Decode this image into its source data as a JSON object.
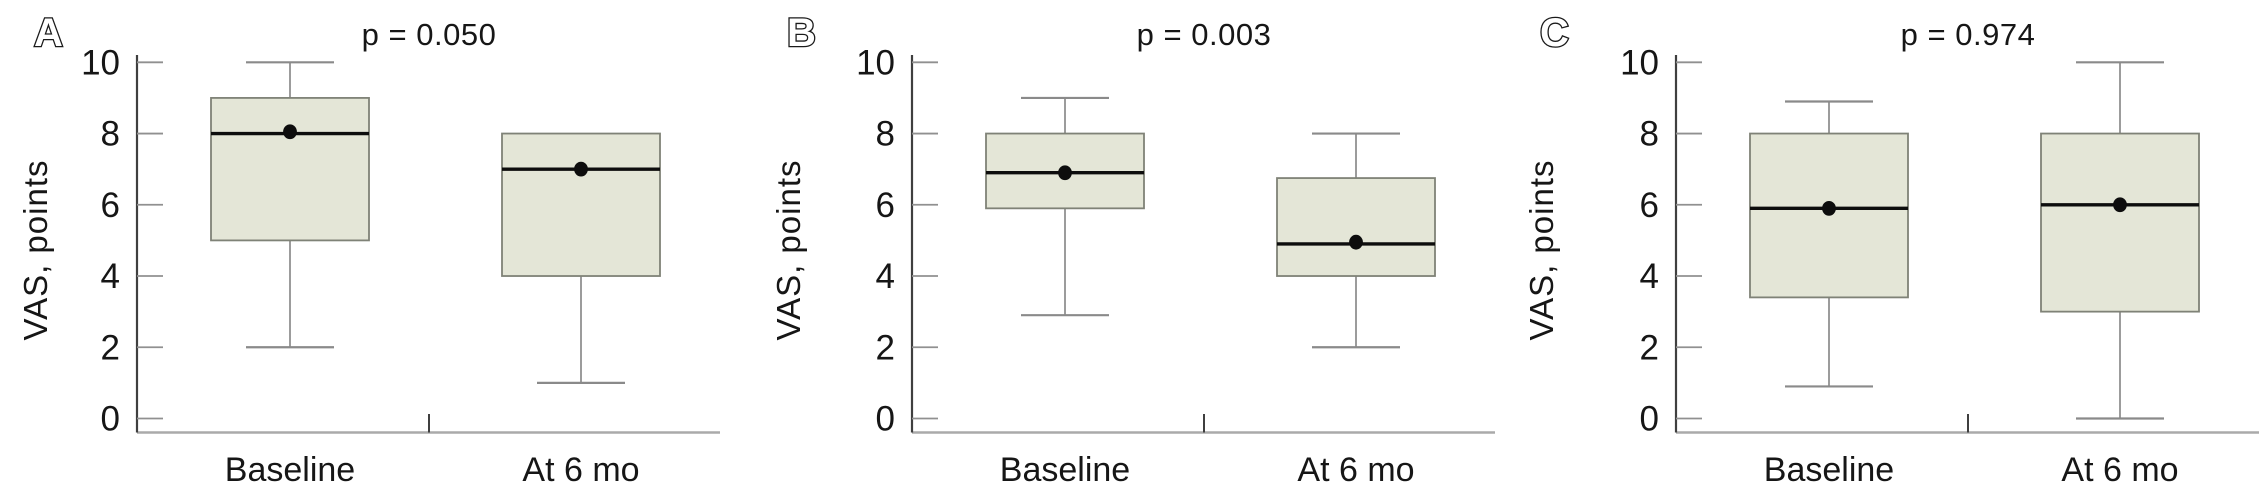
{
  "figure": {
    "ylabel": "VAS, points",
    "categories": [
      "Baseline",
      "At 6 mo"
    ],
    "colors": {
      "box_fill": "#e4e6d7",
      "box_border": "#7f8277",
      "median": "#0d0d0d",
      "mean_dot": "#0d0d0d",
      "whisker": "#8a8a8a",
      "y_axis": "#3f3f3f",
      "x_axis": "#aaaaaa",
      "tick": "#909090",
      "text": "#161616"
    }
  },
  "chart_data": [
    {
      "type": "box",
      "panel_label": "A",
      "p_value_label": "p = 0.050",
      "ylabel": "VAS, points",
      "ylim": [
        0,
        10
      ],
      "yticks": [
        0,
        2,
        4,
        6,
        8,
        10
      ],
      "categories": [
        "Baseline",
        "At 6 mo"
      ],
      "series": [
        {
          "category": "Baseline",
          "whisker_low": 2,
          "q1": 5,
          "median": 8,
          "q3": 9,
          "whisker_high": 10,
          "mean": 8.05
        },
        {
          "category": "At 6 mo",
          "whisker_low": 1,
          "q1": 4,
          "median": 7,
          "q3": 8,
          "whisker_high": 8,
          "mean": 7
        }
      ]
    },
    {
      "type": "box",
      "panel_label": "B",
      "p_value_label": "p = 0.003",
      "ylabel": "VAS, points",
      "ylim": [
        0,
        10
      ],
      "yticks": [
        0,
        2,
        4,
        6,
        8,
        10
      ],
      "categories": [
        "Baseline",
        "At 6 mo"
      ],
      "series": [
        {
          "category": "Baseline",
          "whisker_low": 2.9,
          "q1": 5.9,
          "median": 6.9,
          "q3": 8,
          "whisker_high": 9,
          "mean": 6.9
        },
        {
          "category": "At 6 mo",
          "whisker_low": 2,
          "q1": 4,
          "median": 4.9,
          "q3": 6.75,
          "whisker_high": 8,
          "mean": 4.95
        }
      ]
    },
    {
      "type": "box",
      "panel_label": "C",
      "p_value_label": "p = 0.974",
      "ylabel": "VAS, points",
      "ylim": [
        0,
        10
      ],
      "yticks": [
        0,
        2,
        4,
        6,
        8,
        10
      ],
      "categories": [
        "Baseline",
        "At 6 mo"
      ],
      "series": [
        {
          "category": "Baseline",
          "whisker_low": 0.9,
          "q1": 3.4,
          "median": 5.9,
          "q3": 8,
          "whisker_high": 8.9,
          "mean": 5.9
        },
        {
          "category": "At 6 mo",
          "whisker_low": 0,
          "q1": 3,
          "median": 6,
          "q3": 8,
          "whisker_high": 10,
          "mean": 6
        }
      ]
    }
  ]
}
